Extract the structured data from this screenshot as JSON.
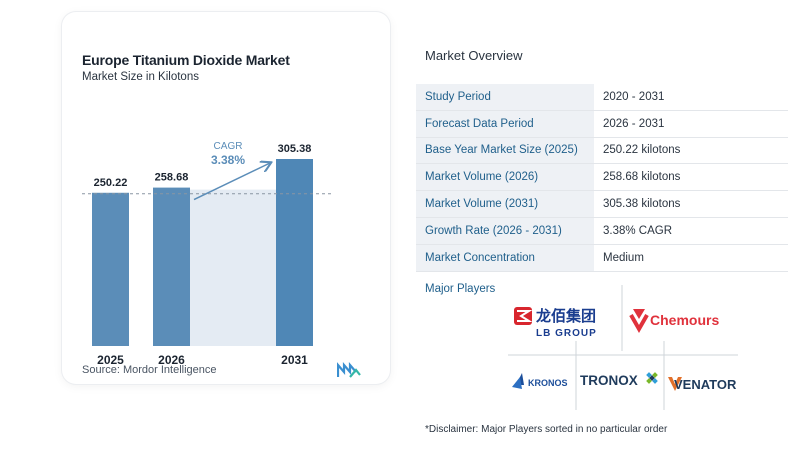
{
  "chart": {
    "title": "Europe Titanium Dioxide Market",
    "subtitle": "Market Size in Kilotons",
    "source": "Source:  Mordor Intelligence",
    "cagr_label": "CAGR",
    "cagr_value": "3.38%"
  },
  "chart_data": {
    "type": "bar",
    "categories": [
      "2025",
      "2026",
      "2031"
    ],
    "values": [
      250.22,
      258.68,
      305.38
    ],
    "data_labels": [
      "250.22",
      "258.68",
      "305.38"
    ],
    "title": "Europe Titanium Dioxide Market",
    "subtitle": "Market Size in Kilotons",
    "xlabel": "",
    "ylabel": "",
    "annotation": {
      "label": "CAGR",
      "value": "3.38%"
    },
    "bar_color": "#5b8db8",
    "bar_color_last": "#4f87b6",
    "grid": false
  },
  "overview": {
    "title": "Market Overview",
    "rows": [
      {
        "key": "Study Period",
        "value": "2020 - 2031"
      },
      {
        "key": "Forecast Data Period",
        "value": "2026 - 2031"
      },
      {
        "key": "Base Year Market Size (2025)",
        "value": "250.22 kilotons"
      },
      {
        "key": "Market Volume (2026)",
        "value": "258.68 kilotons"
      },
      {
        "key": "Market Volume (2031)",
        "value": "305.38 kilotons"
      },
      {
        "key": "Growth Rate (2026 - 2031)",
        "value": "3.38% CAGR"
      },
      {
        "key": "Market Concentration",
        "value": "Medium"
      }
    ],
    "players_label": "Major Players",
    "players": [
      {
        "name": "龙佰集团",
        "sub": "LB GROUP",
        "icon": "lb-group-logo"
      },
      {
        "name": "Chemours",
        "icon": "chemours-logo"
      },
      {
        "name": "KRONOS",
        "icon": "kronos-logo"
      },
      {
        "name": "TRONOX",
        "icon": "tronox-logo"
      },
      {
        "name": "VENATOR",
        "icon": "venator-logo"
      }
    ],
    "disclaimer": "*Disclaimer: Major Players sorted in no particular order"
  }
}
